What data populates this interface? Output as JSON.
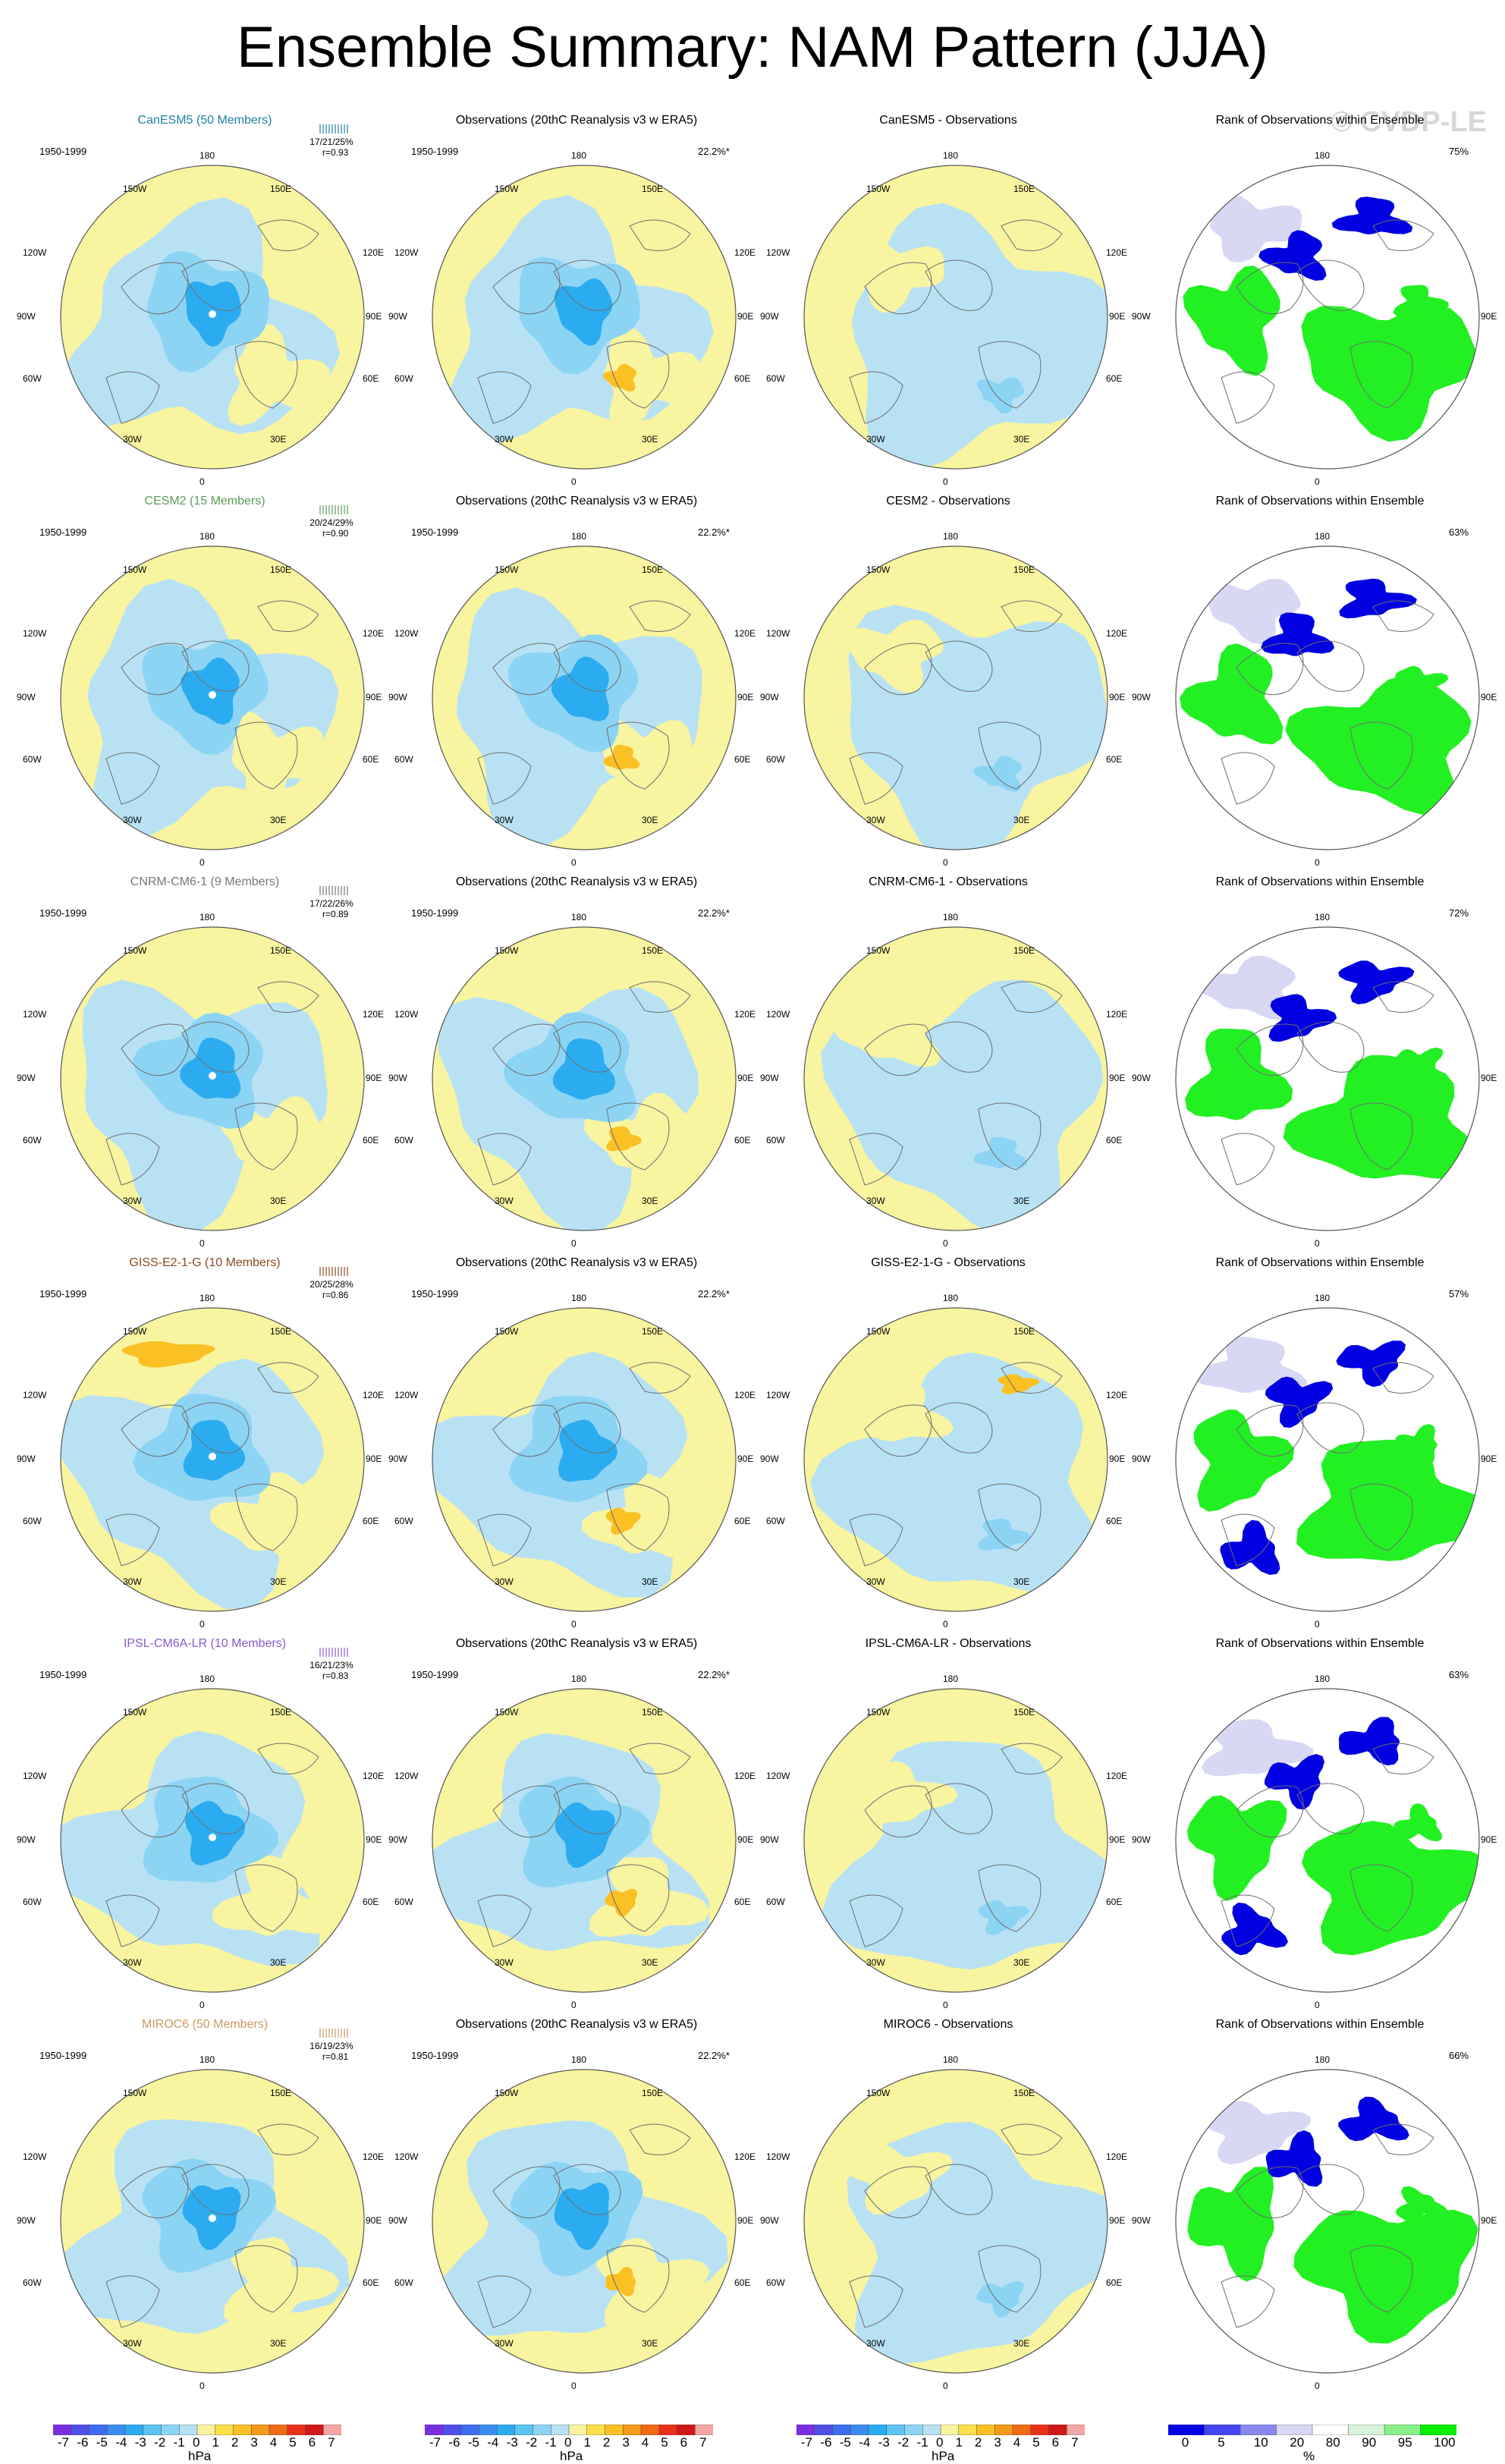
{
  "figure": {
    "title": "Ensemble Summary: NAM Pattern (JJA)",
    "watermark": "© CVDP-LE",
    "period": "1950-1999",
    "obs_title": "Observations (20thC Reanalysis v3 w ERA5)",
    "obs_stat": "22.2%*",
    "rank_title": "Rank of Observations within Ensemble",
    "lon_labels": {
      "top": "180",
      "bottom": "0",
      "left": "90W",
      "right": "90E",
      "ul": "150W",
      "ur": "150E",
      "ul2": "120W",
      "ur2": "120E",
      "ll2": "60W",
      "lr2": "60E",
      "ll": "30W",
      "lr": "30E"
    }
  },
  "rows": [
    {
      "model_title": "CanESM5 (50 Members)",
      "model_color": "#1f7fa8",
      "ranks": "17/21/25%",
      "corr": "r=0.93",
      "diff_title": "CanESM5 - Observations",
      "rank_pct": "75%",
      "variant": 0
    },
    {
      "model_title": "CESM2 (15 Members)",
      "model_color": "#5a9a5a",
      "ranks": "20/24/29%",
      "corr": "r=0.90",
      "diff_title": "CESM2 - Observations",
      "rank_pct": "63%",
      "variant": 1
    },
    {
      "model_title": "CNRM-CM6-1 (9 Members)",
      "model_color": "#777777",
      "ranks": "17/22/26%",
      "corr": "r=0.89",
      "diff_title": "CNRM-CM6-1 - Observations",
      "rank_pct": "72%",
      "variant": 2
    },
    {
      "model_title": "GISS-E2-1-G (10 Members)",
      "model_color": "#8b4a1f",
      "ranks": "20/25/28%",
      "corr": "r=0.86",
      "diff_title": "GISS-E2-1-G - Observations",
      "rank_pct": "57%",
      "variant": 3
    },
    {
      "model_title": "IPSL-CM6A-LR (10 Members)",
      "model_color": "#8a5acb",
      "ranks": "16/21/23%",
      "corr": "r=0.83",
      "diff_title": "IPSL-CM6A-LR - Observations",
      "rank_pct": "63%",
      "variant": 4
    },
    {
      "model_title": "MIROC6 (50 Members)",
      "model_color": "#c89a60",
      "ranks": "16/19/23%",
      "corr": "r=0.81",
      "diff_title": "MIROC6 - Observations",
      "rank_pct": "66%",
      "variant": 5
    }
  ],
  "colorbars": {
    "hpa": {
      "ticks": [
        "-7",
        "-6",
        "-5",
        "-4",
        "-3",
        "-2",
        "-1",
        "0",
        "1",
        "2",
        "3",
        "4",
        "5",
        "6",
        "7"
      ],
      "unit": "hPa",
      "colors": [
        "#7b2ee0",
        "#5050e8",
        "#3c6cf0",
        "#3c8cf0",
        "#2cacf0",
        "#5cc4f2",
        "#8cd4f4",
        "#b8e2f4",
        "#f8f4a0",
        "#fbe04a",
        "#fbc024",
        "#f59a18",
        "#f06a14",
        "#e8301a",
        "#d01818",
        "#f4a6a6"
      ]
    },
    "pct": {
      "ticks": [
        "0",
        "5",
        "10",
        "20",
        "80",
        "90",
        "95",
        "100"
      ],
      "unit": "%",
      "colors": [
        "#0000e0",
        "#4444f0",
        "#8888f0",
        "#d8d8f4",
        "#ffffff",
        "#d8f4d8",
        "#88f088",
        "#00f000"
      ]
    }
  },
  "colors": {
    "land_fill": "#f8f4a0",
    "ocean_fill": "#b8e2f4",
    "blue_mid": "#8cd4f4",
    "blue_core": "#2cacf0",
    "orange": "#fbc024",
    "rank_blue": "#0000e0",
    "rank_green": "#22f022",
    "rank_pale": "#d8d8f4"
  }
}
